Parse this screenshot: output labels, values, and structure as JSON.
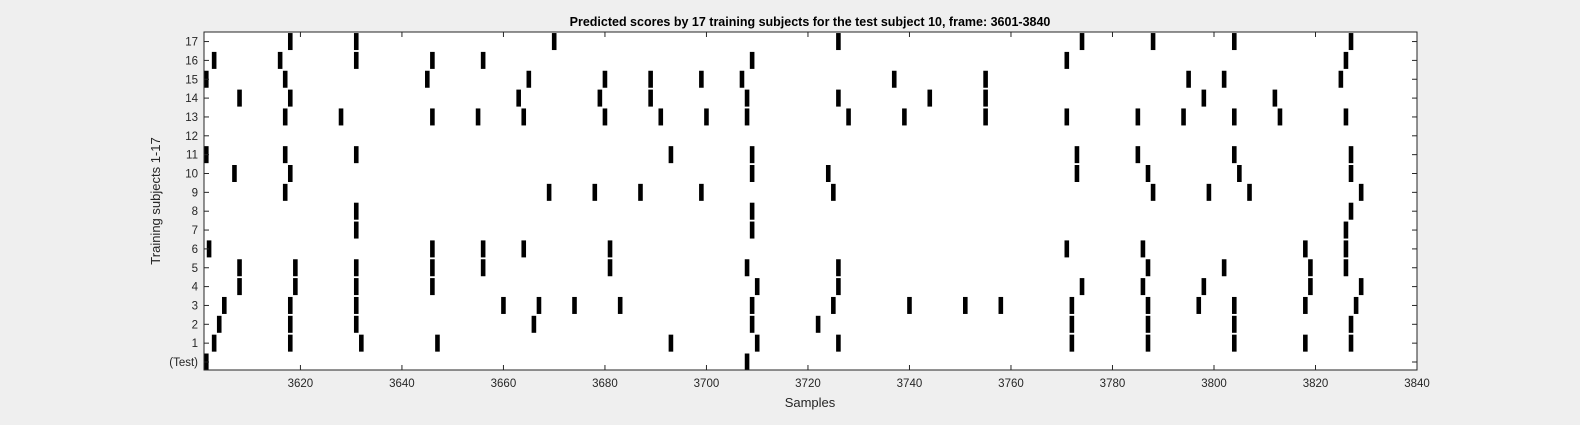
{
  "chart_data": {
    "type": "heatmap",
    "title": "Predicted scores by 17 training subjects for the test subject 10, frame: 3601-3840",
    "xlabel": "Samples",
    "ylabel": "Training subjects 1-17",
    "xlim": [
      3601,
      3840
    ],
    "x_ticks": [
      3620,
      3640,
      3660,
      3680,
      3700,
      3720,
      3740,
      3760,
      3780,
      3800,
      3820,
      3840
    ],
    "y_ticks": [
      "(Test)",
      "1",
      "2",
      "3",
      "4",
      "5",
      "6",
      "7",
      "8",
      "9",
      "10",
      "11",
      "12",
      "13",
      "14",
      "15",
      "16",
      "17"
    ],
    "grid": false,
    "colors": {
      "mark": "#000000",
      "plot_bg": "#ffffff",
      "figure_bg": "#efefef"
    },
    "rows": [
      {
        "label": "(Test)",
        "x": [
          3601,
          3708
        ]
      },
      {
        "label": "1",
        "x": [
          3603,
          3618,
          3632,
          3647,
          3693,
          3710,
          3726,
          3772,
          3787,
          3804,
          3818,
          3827
        ]
      },
      {
        "label": "2",
        "x": [
          3604,
          3618,
          3631,
          3666,
          3722,
          3709,
          3772,
          3787,
          3804,
          3827
        ]
      },
      {
        "label": "3",
        "x": [
          3605,
          3618,
          3631,
          3660,
          3667,
          3674,
          3683,
          3709,
          3725,
          3740,
          3751,
          3758,
          3772,
          3787,
          3797,
          3804,
          3818,
          3828
        ]
      },
      {
        "label": "4",
        "x": [
          3608,
          3619,
          3631,
          3646,
          3710,
          3726,
          3774,
          3786,
          3798,
          3819,
          3829
        ]
      },
      {
        "label": "5",
        "x": [
          3608,
          3619,
          3631,
          3646,
          3656,
          3681,
          3708,
          3726,
          3787,
          3802,
          3819,
          3826
        ]
      },
      {
        "label": "6",
        "x": [
          3602,
          3646,
          3656,
          3664,
          3681,
          3771,
          3786,
          3818,
          3826
        ]
      },
      {
        "label": "7",
        "x": [
          3631,
          3709,
          3826
        ]
      },
      {
        "label": "8",
        "x": [
          3631,
          3709,
          3827
        ]
      },
      {
        "label": "9",
        "x": [
          3617,
          3669,
          3678,
          3687,
          3699,
          3725,
          3788,
          3799,
          3807,
          3829
        ]
      },
      {
        "label": "10",
        "x": [
          3607,
          3618,
          3709,
          3724,
          3773,
          3787,
          3805,
          3827
        ]
      },
      {
        "label": "11",
        "x": [
          3601,
          3617,
          3631,
          3693,
          3709,
          3773,
          3785,
          3804,
          3827
        ]
      },
      {
        "label": "12",
        "x": []
      },
      {
        "label": "13",
        "x": [
          3617,
          3628,
          3646,
          3655,
          3664,
          3680,
          3691,
          3700,
          3708,
          3728,
          3739,
          3755,
          3771,
          3785,
          3794,
          3804,
          3813,
          3826
        ]
      },
      {
        "label": "14",
        "x": [
          3608,
          3618,
          3663,
          3679,
          3689,
          3708,
          3726,
          3744,
          3755,
          3798,
          3812
        ]
      },
      {
        "label": "15",
        "x": [
          3601,
          3617,
          3645,
          3665,
          3680,
          3689,
          3699,
          3707,
          3737,
          3755,
          3795,
          3802,
          3825
        ]
      },
      {
        "label": "16",
        "x": [
          3603,
          3616,
          3631,
          3646,
          3656,
          3709,
          3771,
          3826
        ]
      },
      {
        "label": "17",
        "x": [
          3618,
          3631,
          3670,
          3726,
          3774,
          3788,
          3804,
          3827
        ]
      }
    ]
  }
}
